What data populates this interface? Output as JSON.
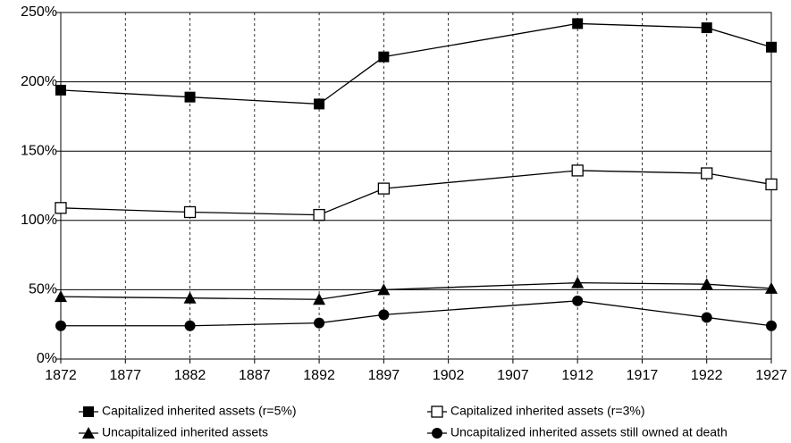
{
  "chart_data": {
    "type": "line",
    "x": [
      1872,
      1882,
      1892,
      1897,
      1912,
      1922,
      1927
    ],
    "series": [
      {
        "name": "Capitalized inherited assets (r=5%)",
        "color": "#000000",
        "marker": "square-filled",
        "values": [
          194,
          189,
          184,
          218,
          242,
          239,
          225
        ]
      },
      {
        "name": "Capitalized inherited assets (r=3%)",
        "color": "#000000",
        "marker": "square-open",
        "values": [
          109,
          106,
          104,
          123,
          136,
          134,
          126
        ]
      },
      {
        "name": "Uncapitalized inherited assets",
        "color": "#000000",
        "marker": "triangle",
        "values": [
          45,
          44,
          43,
          50,
          55,
          54,
          51
        ]
      },
      {
        "name": "Uncapitalized inherited assets still owned at death",
        "color": "#000000",
        "marker": "circle",
        "values": [
          24,
          24,
          26,
          32,
          42,
          30,
          24
        ]
      }
    ],
    "xlim": [
      1872,
      1927
    ],
    "xticks": [
      1872,
      1877,
      1882,
      1887,
      1892,
      1897,
      1902,
      1907,
      1912,
      1917,
      1922,
      1927
    ],
    "ylim": [
      0,
      250
    ],
    "yticks": [
      {
        "value": 0,
        "label": "0%"
      },
      {
        "value": 50,
        "label": "50%"
      },
      {
        "value": 100,
        "label": "100%"
      },
      {
        "value": 150,
        "label": "150%"
      },
      {
        "value": 200,
        "label": "200%"
      },
      {
        "value": 250,
        "label": "250%"
      }
    ],
    "grid": true,
    "legend": "bottom"
  }
}
